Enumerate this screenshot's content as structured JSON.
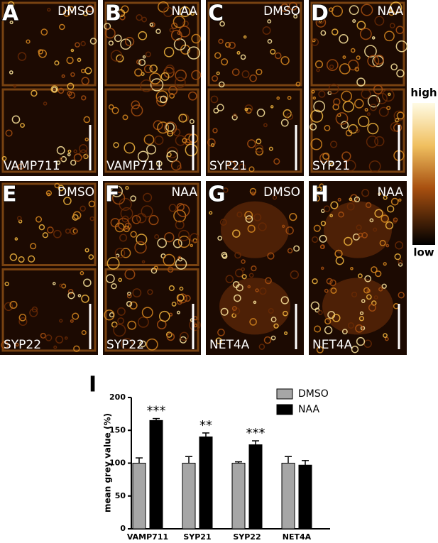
{
  "panels": [
    {
      "letter": "A",
      "treatment": "DMSO",
      "marker": "VAMP711"
    },
    {
      "letter": "B",
      "treatment": "NAA",
      "marker": "VAMP711"
    },
    {
      "letter": "C",
      "treatment": "DMSO",
      "marker": "SYP21"
    },
    {
      "letter": "D",
      "treatment": "NAA",
      "marker": "SYP21"
    },
    {
      "letter": "E",
      "treatment": "DMSO",
      "marker": "SYP22"
    },
    {
      "letter": "F",
      "treatment": "NAA",
      "marker": "SYP22"
    },
    {
      "letter": "G",
      "treatment": "DMSO",
      "marker": "NET4A"
    },
    {
      "letter": "H",
      "treatment": "NAA",
      "marker": "NET4A"
    }
  ],
  "colorbar": {
    "high": "high",
    "low": "low"
  },
  "chart_panel": "I",
  "chart_data": {
    "type": "bar",
    "ylabel": "mean grey value (%)",
    "categories": [
      "VAMP711",
      "SYP21",
      "SYP22",
      "NET4A"
    ],
    "series": [
      {
        "name": "DMSO",
        "color": "#a6a6a6",
        "values": [
          100,
          100,
          100,
          100
        ],
        "errors": [
          8,
          10,
          2,
          10
        ]
      },
      {
        "name": "NAA",
        "color": "#000000",
        "values": [
          165,
          140,
          128,
          97
        ],
        "errors": [
          3,
          6,
          6,
          7
        ]
      }
    ],
    "annotations": [
      "***",
      "**",
      "***",
      null
    ],
    "ylim": [
      0,
      200
    ],
    "yticks": [
      0,
      50,
      100,
      150,
      200
    ]
  }
}
